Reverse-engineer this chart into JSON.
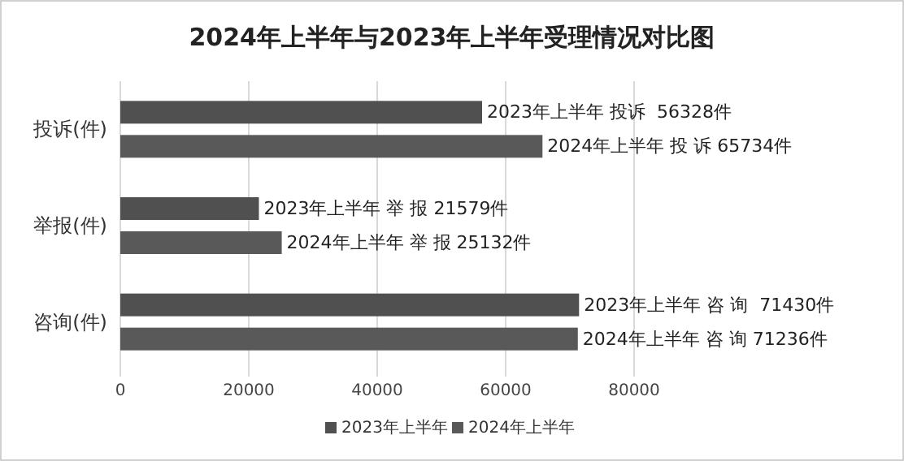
{
  "chart_data": {
    "type": "bar",
    "orientation": "horizontal",
    "title": "2024年上半年与2023年上半年受理情况对比图",
    "categories": [
      "投诉(件)",
      "举报(件)",
      "咨询(件)"
    ],
    "series": [
      {
        "name": "2023年上半年",
        "color": "#505050",
        "values": [
          56328,
          21579,
          71430
        ],
        "value_labels": [
          "2023年上半年 投诉  56328件",
          "2023年上半年 举 报 21579件",
          "2023年上半年 咨 询  71430件"
        ]
      },
      {
        "name": "2024年上半年",
        "color": "#595959",
        "values": [
          65734,
          25132,
          71236
        ],
        "value_labels": [
          "2024年上半年 投 诉 65734件",
          "2024年上半年 举 报 25132件",
          "2024年上半年 咨 询 71236件"
        ]
      }
    ],
    "xlim": [
      0,
      80000
    ],
    "xticks": [
      0,
      20000,
      40000,
      60000,
      80000
    ],
    "grid": "x",
    "legend": "bottom"
  }
}
